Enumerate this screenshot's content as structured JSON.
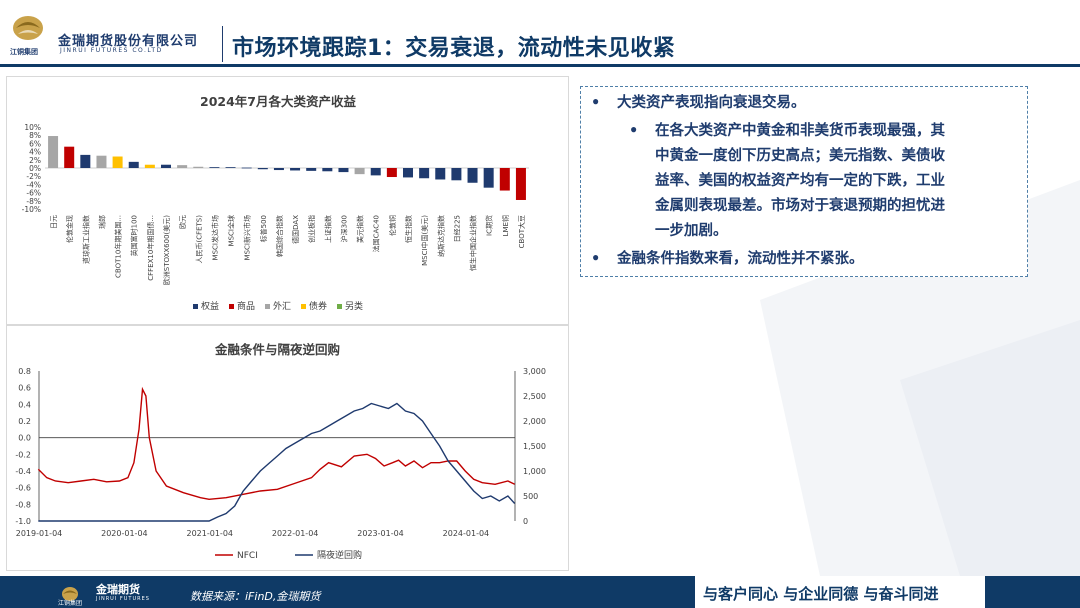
{
  "header": {
    "company_cn": "金瑞期货股份有限公司",
    "company_en": "JINRUI FUTURES CO.LTD",
    "group": "江铜集团",
    "title": "市场环境跟踪1：交易衰退，流动性未见收紧"
  },
  "textbox": {
    "bullet1": "大类资产表现指向衰退交易。",
    "sub_lines": [
      "在各大类资产中黄金和非美货币表现最强，其",
      "中黄金一度创下历史高点；美元指数、美债收",
      "益率、美国的权益资产均有一定的下跌，工业",
      "金属则表现最差。市场对于衰退预期的担忧进",
      "一步加剧。"
    ],
    "bullet2": "金融条件指数来看，流动性并不紧张。"
  },
  "footer": {
    "source": "数据来源：iFinD,金瑞期货",
    "slogan": "与客户同心 与企业同德 与奋斗同进",
    "brand": "金瑞期货",
    "brand_en": "JINRUI FUTURES",
    "group": "江铜集团"
  },
  "colors": {
    "navy": "#0f3a66",
    "equity": "#1f3a6e",
    "commodity": "#c00000",
    "fx": "#a6a6a6",
    "bond": "#ffc000",
    "alt": "#70ad47"
  },
  "chart_data": [
    {
      "type": "bar",
      "title": "2024年7月各大类资产收益",
      "ylim": [
        -10,
        10
      ],
      "yticks": [
        "10%",
        "8%",
        "6%",
        "4%",
        "2%",
        "0%",
        "-2%",
        "-4%",
        "-6%",
        "-8%",
        "-10%"
      ],
      "categories": [
        "日元",
        "伦敦金现",
        "道琼斯工业指数",
        "瑞郎",
        "CBOT10年期美国...",
        "英国富时100",
        "CFFEX10年期国债...",
        "欧洲STOXX600(美元)",
        "欧元",
        "人民币(CFETS)",
        "MSCI发达市场",
        "MSCI全球",
        "MSCI新兴市场",
        "标普500",
        "韩国综合指数",
        "德国DAX",
        "创业板指",
        "上证指数",
        "沪深300",
        "美元指数",
        "法国CAC40",
        "伦敦铜",
        "恒生指数",
        "MSCI中国(美元)",
        "纳斯达克指数",
        "日经225",
        "恒生中国企业指数",
        "IC期货",
        "LME铜",
        "CBOT大豆"
      ],
      "values": [
        7.8,
        5.2,
        3.2,
        3.0,
        2.8,
        1.5,
        0.8,
        0.8,
        0.7,
        0.3,
        0.2,
        0.2,
        0.1,
        -0.3,
        -0.5,
        -0.6,
        -0.7,
        -0.8,
        -1.0,
        -1.5,
        -1.8,
        -2.2,
        -2.3,
        -2.5,
        -2.8,
        -3.0,
        -3.6,
        -4.8,
        -5.5,
        -7.8
      ],
      "groups": [
        "外汇",
        "商品",
        "权益",
        "外汇",
        "债券",
        "权益",
        "债券",
        "权益",
        "外汇",
        "外汇",
        "权益",
        "权益",
        "权益",
        "权益",
        "权益",
        "权益",
        "权益",
        "权益",
        "权益",
        "外汇",
        "权益",
        "商品",
        "权益",
        "权益",
        "权益",
        "权益",
        "权益",
        "权益",
        "商品",
        "商品"
      ],
      "legend": [
        {
          "name": "权益",
          "color": "#1f3a6e"
        },
        {
          "name": "商品",
          "color": "#c00000"
        },
        {
          "name": "外汇",
          "color": "#a6a6a6"
        },
        {
          "name": "债券",
          "color": "#ffc000"
        },
        {
          "name": "另类",
          "color": "#70ad47"
        }
      ],
      "legend_position": "bottom"
    },
    {
      "type": "line",
      "title": "金融条件与隔夜逆回购",
      "x_labels": [
        "2019-01-04",
        "2020-01-04",
        "2021-01-04",
        "2022-01-04",
        "2023-01-04",
        "2024-01-04"
      ],
      "x_range": [
        "2019-01-04",
        "2024-08-01"
      ],
      "y_left_ticks": [
        "0.8",
        "0.6",
        "0.4",
        "0.2",
        "0.0",
        "-0.2",
        "-0.4",
        "-0.6",
        "-0.8",
        "-1.0"
      ],
      "y_left_range": [
        -1.0,
        0.8
      ],
      "y_right_ticks": [
        "3,000",
        "2,500",
        "2,000",
        "1,500",
        "1,000",
        "500",
        "0"
      ],
      "y_right_range": [
        0,
        3000
      ],
      "legend_position": "bottom",
      "series": [
        {
          "name": "NFCI",
          "axis": "left",
          "color": "#c00000",
          "x": [
            2019.0,
            2019.1,
            2019.2,
            2019.35,
            2019.5,
            2019.65,
            2019.8,
            2019.95,
            2020.05,
            2020.12,
            2020.18,
            2020.22,
            2020.26,
            2020.3,
            2020.38,
            2020.5,
            2020.7,
            2020.9,
            2021.0,
            2021.2,
            2021.4,
            2021.6,
            2021.8,
            2022.0,
            2022.2,
            2022.3,
            2022.4,
            2022.55,
            2022.7,
            2022.85,
            2022.95,
            2023.05,
            2023.15,
            2023.22,
            2023.3,
            2023.4,
            2023.5,
            2023.6,
            2023.7,
            2023.8,
            2023.9,
            2024.0,
            2024.1,
            2024.2,
            2024.35,
            2024.5,
            2024.58
          ],
          "y": [
            -0.38,
            -0.48,
            -0.52,
            -0.54,
            -0.52,
            -0.5,
            -0.53,
            -0.52,
            -0.48,
            -0.3,
            0.1,
            0.58,
            0.5,
            0.0,
            -0.4,
            -0.58,
            -0.66,
            -0.72,
            -0.74,
            -0.72,
            -0.68,
            -0.64,
            -0.62,
            -0.55,
            -0.48,
            -0.38,
            -0.3,
            -0.35,
            -0.22,
            -0.2,
            -0.25,
            -0.34,
            -0.3,
            -0.27,
            -0.34,
            -0.28,
            -0.36,
            -0.3,
            -0.3,
            -0.28,
            -0.28,
            -0.4,
            -0.5,
            -0.54,
            -0.56,
            -0.52,
            -0.56
          ]
        },
        {
          "name": "隔夜逆回购",
          "axis": "right",
          "color": "#1f3a6e",
          "x": [
            2019.0,
            2019.5,
            2020.0,
            2020.5,
            2021.0,
            2021.1,
            2021.2,
            2021.3,
            2021.4,
            2021.5,
            2021.6,
            2021.7,
            2021.8,
            2021.9,
            2022.0,
            2022.1,
            2022.2,
            2022.3,
            2022.4,
            2022.5,
            2022.6,
            2022.7,
            2022.8,
            2022.9,
            2023.0,
            2023.1,
            2023.2,
            2023.3,
            2023.4,
            2023.5,
            2023.6,
            2023.7,
            2023.8,
            2023.9,
            2024.0,
            2024.1,
            2024.2,
            2024.3,
            2024.4,
            2024.5,
            2024.58
          ],
          "y": [
            0,
            0,
            0,
            0,
            0,
            80,
            150,
            300,
            600,
            800,
            1000,
            1150,
            1300,
            1450,
            1550,
            1650,
            1750,
            1800,
            1900,
            2000,
            2100,
            2200,
            2250,
            2350,
            2300,
            2250,
            2350,
            2200,
            2150,
            2000,
            1750,
            1500,
            1200,
            1000,
            800,
            600,
            450,
            500,
            400,
            500,
            350
          ]
        }
      ]
    }
  ]
}
